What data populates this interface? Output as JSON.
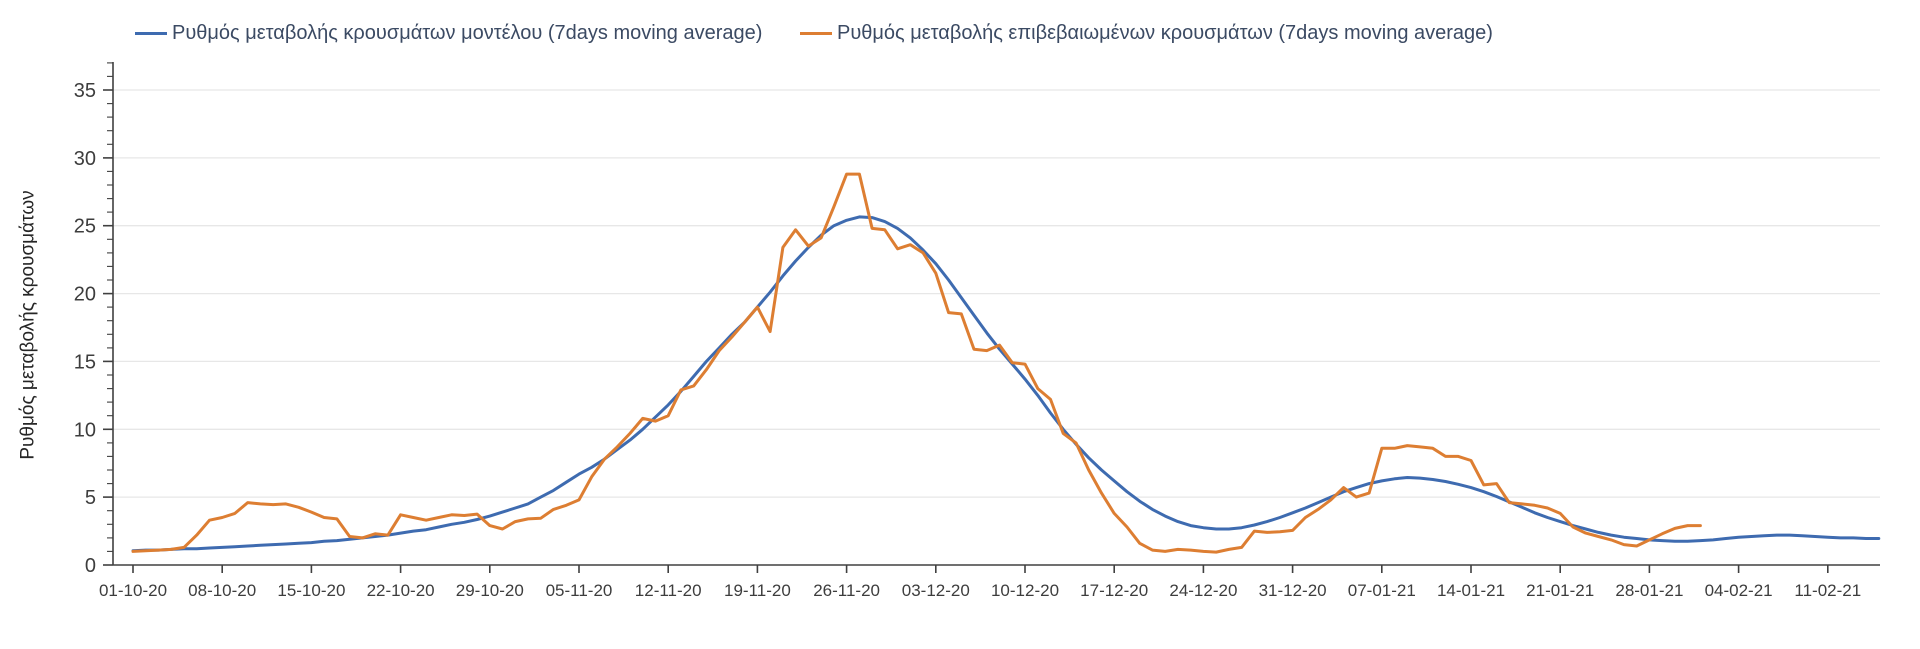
{
  "chart_data": {
    "type": "line",
    "title": "",
    "xlabel": "",
    "ylabel": "Ρυθμός μεταβολής κρουσμάτων",
    "ylim": [
      0,
      35
    ],
    "y_ticks": [
      0,
      5,
      10,
      15,
      20,
      25,
      30,
      35
    ],
    "y_minor_tick_step": 1,
    "grid": "horizontal-major-only",
    "legend_position": "top",
    "x_start_date": "01-10-20",
    "x_resolution": "daily",
    "x_tick_every_days": 7,
    "x_tick_labels": [
      "01-10-20",
      "08-10-20",
      "15-10-20",
      "22-10-20",
      "29-10-20",
      "05-11-20",
      "12-11-20",
      "19-11-20",
      "26-11-20",
      "03-12-20",
      "10-12-20",
      "17-12-20",
      "24-12-20",
      "31-12-20",
      "07-01-21",
      "14-01-21",
      "21-01-21",
      "28-01-21",
      "04-02-21",
      "11-02-21"
    ],
    "style": {
      "grid_color": "#e7e7e7",
      "axis_color": "#404040",
      "tick_label_color": "#3d3d3d",
      "legend_text_color": "#3b4a63",
      "background": "#ffffff"
    },
    "series": [
      {
        "name": "Ρυθμός μεταβολής κρουσμάτων μοντέλου (7days moving average)",
        "color": "#3e6bb0",
        "values": [
          1.05,
          1.1,
          1.1,
          1.15,
          1.2,
          1.2,
          1.25,
          1.3,
          1.35,
          1.4,
          1.45,
          1.5,
          1.55,
          1.6,
          1.65,
          1.75,
          1.8,
          1.9,
          2.0,
          2.1,
          2.2,
          2.35,
          2.5,
          2.6,
          2.8,
          3.0,
          3.15,
          3.35,
          3.6,
          3.9,
          4.2,
          4.5,
          5.0,
          5.5,
          6.1,
          6.7,
          7.2,
          7.8,
          8.5,
          9.2,
          10.0,
          10.9,
          11.8,
          12.8,
          13.9,
          15.0,
          16.0,
          17.0,
          17.9,
          19.0,
          20.1,
          21.3,
          22.4,
          23.4,
          24.3,
          25.0,
          25.4,
          25.65,
          25.6,
          25.3,
          24.8,
          24.1,
          23.2,
          22.2,
          21.0,
          19.7,
          18.4,
          17.1,
          15.9,
          14.8,
          13.7,
          12.5,
          11.2,
          10.0,
          8.9,
          7.9,
          7.0,
          6.2,
          5.4,
          4.7,
          4.1,
          3.6,
          3.2,
          2.9,
          2.75,
          2.65,
          2.65,
          2.75,
          2.95,
          3.2,
          3.5,
          3.85,
          4.2,
          4.6,
          5.0,
          5.4,
          5.7,
          6.0,
          6.2,
          6.35,
          6.45,
          6.4,
          6.3,
          6.15,
          5.95,
          5.7,
          5.4,
          5.05,
          4.65,
          4.25,
          3.85,
          3.5,
          3.2,
          2.9,
          2.65,
          2.4,
          2.2,
          2.05,
          1.95,
          1.85,
          1.8,
          1.75,
          1.75,
          1.8,
          1.85,
          1.95,
          2.05,
          2.1,
          2.15,
          2.2,
          2.2,
          2.15,
          2.1,
          2.05,
          2.0,
          2.0,
          1.95,
          1.95
        ]
      },
      {
        "name": "Ρυθμός μεταβολής επιβεβαιωμένων κρουσμάτων (7days moving average)",
        "color": "#dd7e32",
        "values": [
          1.0,
          1.05,
          1.1,
          1.15,
          1.3,
          2.2,
          3.3,
          3.5,
          3.8,
          4.6,
          4.5,
          4.45,
          4.5,
          4.25,
          3.9,
          3.5,
          3.4,
          2.1,
          2.0,
          2.3,
          2.2,
          3.7,
          3.5,
          3.3,
          3.5,
          3.7,
          3.65,
          3.75,
          2.9,
          2.65,
          3.2,
          3.4,
          3.45,
          4.1,
          4.4,
          4.8,
          6.5,
          7.8,
          8.7,
          9.7,
          10.8,
          10.6,
          11.0,
          12.9,
          13.2,
          14.4,
          15.8,
          16.8,
          17.9,
          19.0,
          17.2,
          23.4,
          24.7,
          23.5,
          24.1,
          26.4,
          28.8,
          28.8,
          24.8,
          24.7,
          23.3,
          23.6,
          23.0,
          21.5,
          18.6,
          18.5,
          15.9,
          15.8,
          16.2,
          14.9,
          14.8,
          13.0,
          12.2,
          9.7,
          9.0,
          7.0,
          5.3,
          3.8,
          2.8,
          1.6,
          1.1,
          1.0,
          1.15,
          1.1,
          1.0,
          0.95,
          1.15,
          1.3,
          2.5,
          2.4,
          2.45,
          2.55,
          3.5,
          4.1,
          4.8,
          5.7,
          5.0,
          5.3,
          8.6,
          8.6,
          8.8,
          8.7,
          8.6,
          8.0,
          8.0,
          7.7,
          5.9,
          6.0,
          4.6,
          4.5,
          4.4,
          4.2,
          3.8,
          2.8,
          2.35,
          2.1,
          1.85,
          1.5,
          1.4,
          1.85,
          2.3,
          2.7,
          2.9,
          2.9,
          null,
          null,
          null,
          null,
          null,
          null,
          null,
          null,
          null,
          null,
          null,
          null,
          null,
          null
        ]
      }
    ]
  }
}
